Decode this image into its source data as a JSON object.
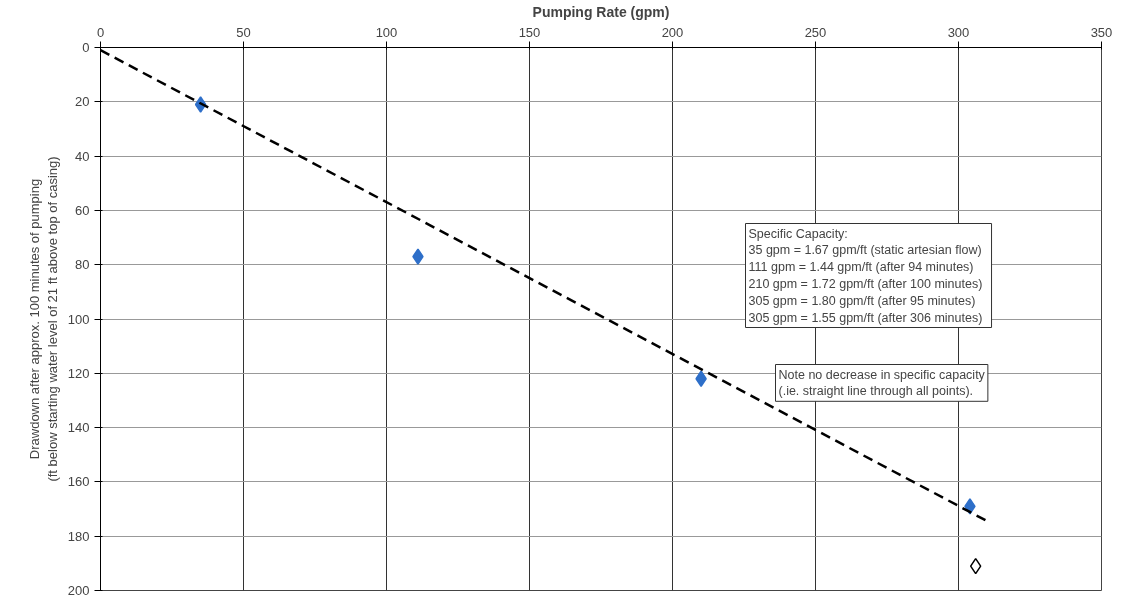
{
  "chart_data": {
    "type": "scatter",
    "xlabel": "Pumping Rate (gpm)",
    "ylabel": "Drawdown after approx. 100 minutes of pumping\n(ft below starting water level of 21 ft above top of casing)",
    "xlim": [
      0,
      350
    ],
    "xticks": [
      0,
      50,
      100,
      150,
      200,
      250,
      300,
      350
    ],
    "ylim": [
      200,
      0
    ],
    "yticks": [
      0,
      20,
      40,
      60,
      80,
      100,
      120,
      140,
      160,
      180,
      200
    ],
    "grid": true,
    "marker": "diamond",
    "series": [
      {
        "color": "#2e6fc9",
        "x": [
          35,
          111,
          210,
          304
        ],
        "values": [
          21,
          77,
          122,
          169
        ]
      },
      {
        "color": "#ffffff",
        "x": [
          306
        ],
        "values": [
          191
        ]
      },
      {
        "type": "line",
        "color": "#000000",
        "line_style": "dashed",
        "marker": "none",
        "x": [
          0,
          311
        ],
        "values": [
          1,
          175
        ]
      }
    ],
    "annotations": [
      "Specific Capacity:\n35 gpm  =  1.67 gpm/ft (static artesian flow)\n111 gpm = 1.44 gpm/ft (after 94 minutes)\n210 gpm = 1.72 gpm/ft (after 100 minutes)\n305 gpm = 1.80 gpm/ft (after 95 minutes)\n305 gpm = 1.55 gpm/ft (after 306 minutes)",
      "Note no decrease in specific capacity\n (.ie. straight line through all points)."
    ]
  }
}
